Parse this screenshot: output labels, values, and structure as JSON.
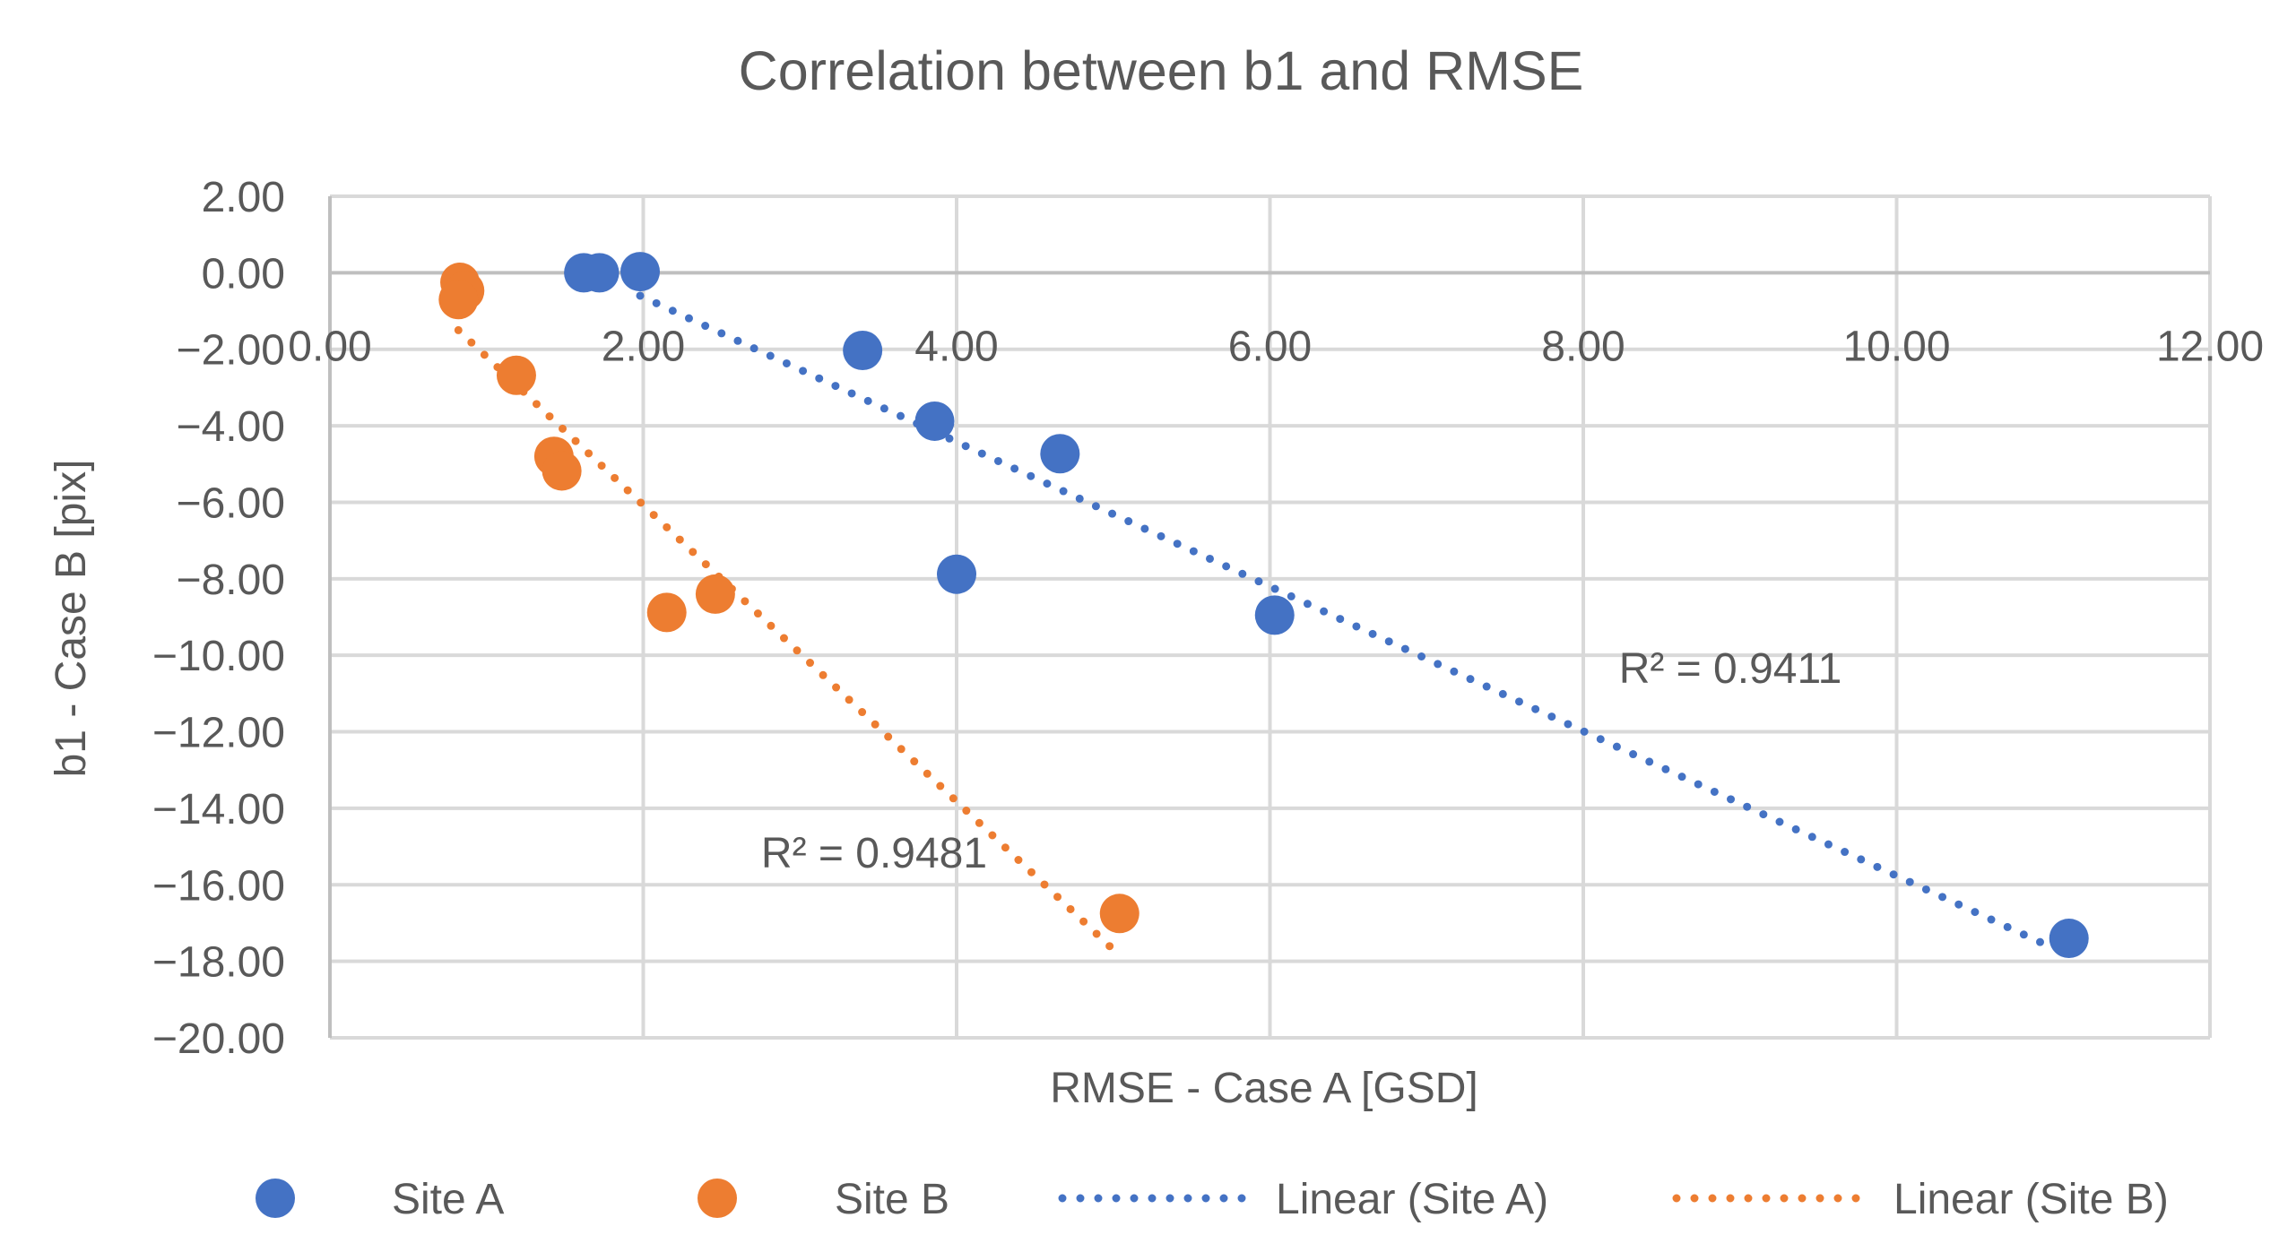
{
  "chart_data": {
    "type": "scatter",
    "title": "Correlation between b1 and RMSE",
    "xlabel": "RMSE - Case A [GSD]",
    "ylabel": "b1 - Case B [pix]",
    "xlim": [
      0,
      12
    ],
    "ylim": [
      -20,
      2
    ],
    "x_ticks": [
      "0.00",
      "2.00",
      "4.00",
      "6.00",
      "8.00",
      "10.00",
      "12.00"
    ],
    "y_ticks": [
      "2.00",
      "0.00",
      "−2.00",
      "−4.00",
      "−6.00",
      "−8.00",
      "−10.00",
      "−12.00",
      "−14.00",
      "−16.00",
      "−18.00",
      "−20.00"
    ],
    "grid": true,
    "legend_position": "bottom",
    "series": [
      {
        "name": "Site A",
        "color": "#4472C4",
        "marker": "circle",
        "x": [
          1.62,
          1.72,
          1.98,
          3.4,
          3.86,
          4.66,
          4.0,
          6.03,
          11.1
        ],
        "y": [
          0.0,
          0.0,
          0.03,
          -2.03,
          -3.88,
          -4.73,
          -7.88,
          -8.95,
          -17.4
        ]
      },
      {
        "name": "Site B",
        "color": "#ED7D31",
        "marker": "circle",
        "x": [
          0.83,
          0.86,
          0.82,
          1.19,
          1.43,
          1.48,
          2.15,
          2.46,
          5.04
        ],
        "y": [
          -0.25,
          -0.47,
          -0.7,
          -2.68,
          -4.8,
          -5.18,
          -8.88,
          -8.4,
          -16.75
        ]
      }
    ],
    "trendlines": [
      {
        "name": "Linear (Site A)",
        "color": "#4472C4",
        "style": "dotted",
        "x": [
          1.98,
          10.97
        ],
        "y": [
          -0.6,
          -17.6
        ],
        "r2_label": "R² = 0.9411"
      },
      {
        "name": "Linear (Site B)",
        "color": "#ED7D31",
        "style": "dotted",
        "x": [
          0.82,
          5.04
        ],
        "y": [
          -1.5,
          -17.85
        ],
        "r2_label": "R² = 0.9481"
      }
    ],
    "legend": [
      {
        "label": "Site A",
        "kind": "marker",
        "color": "#4472C4"
      },
      {
        "label": "Site B",
        "kind": "marker",
        "color": "#ED7D31"
      },
      {
        "label": "Linear (Site A)",
        "kind": "line",
        "color": "#4472C4"
      },
      {
        "label": "Linear (Site B)",
        "kind": "line",
        "color": "#ED7D31"
      }
    ]
  }
}
